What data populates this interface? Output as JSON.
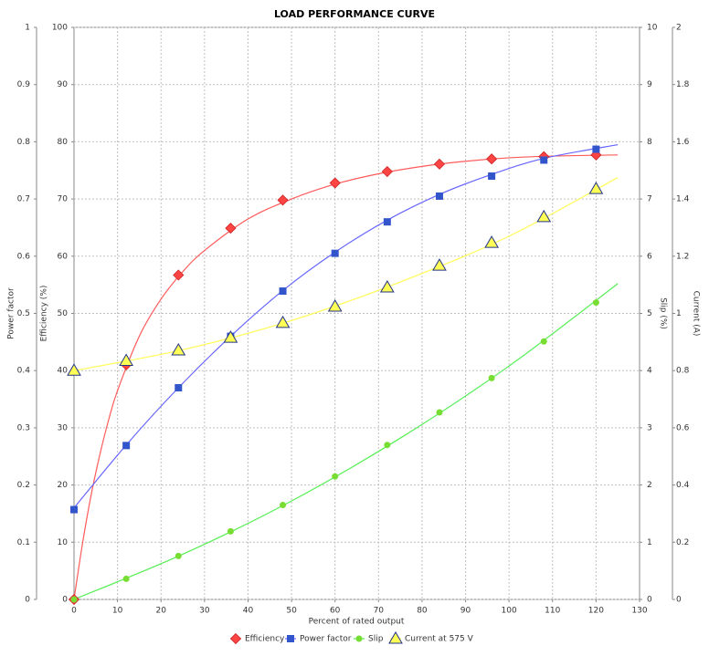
{
  "chart_data": {
    "type": "scatter",
    "title": "LOAD PERFORMANCE CURVE",
    "x_label": "Percent of rated output",
    "xlim": [
      0,
      130
    ],
    "xticks": [
      0,
      10,
      20,
      30,
      40,
      50,
      60,
      70,
      80,
      90,
      100,
      110,
      120,
      130
    ],
    "grid": true,
    "axes": [
      {
        "label": "Power factor",
        "side": "left",
        "ylim": [
          0,
          1
        ],
        "yticks": [
          0,
          0.1,
          0.2,
          0.3,
          0.4,
          0.5,
          0.6,
          0.7,
          0.8,
          0.9,
          1
        ]
      },
      {
        "label": "Efficiency (%)",
        "side": "left",
        "ylim": [
          0,
          100
        ],
        "yticks": [
          0,
          10,
          20,
          30,
          40,
          50,
          60,
          70,
          80,
          90,
          100
        ]
      },
      {
        "label": "Slip (%)",
        "side": "right",
        "ylim": [
          0,
          10
        ],
        "yticks": [
          0,
          1,
          2,
          3,
          4,
          5,
          6,
          7,
          8,
          9,
          10
        ]
      },
      {
        "label": "Current (A)",
        "side": "right",
        "ylim": [
          0,
          2
        ],
        "yticks": [
          0,
          0.2,
          0.4,
          0.6,
          0.8,
          1,
          1.2,
          1.4,
          1.6,
          1.8,
          2
        ]
      }
    ],
    "series": [
      {
        "name": "Efficiency",
        "axis": 1,
        "marker": "diamond",
        "color": "#ff4444",
        "line_color": "#ff5a5a",
        "x": [
          0,
          12,
          24,
          36,
          48,
          60,
          72,
          84,
          96,
          108,
          120
        ],
        "values": [
          0,
          41,
          56.7,
          64.9,
          69.8,
          72.8,
          74.8,
          76.1,
          77,
          77.4,
          77.7
        ],
        "fit": {
          "x": [
            0,
            2,
            4,
            6,
            8,
            10,
            15,
            20,
            25,
            30,
            40,
            50,
            60,
            70,
            80,
            90,
            100,
            110,
            125
          ],
          "values": [
            0,
            10,
            18.5,
            25.5,
            31.5,
            36.5,
            46,
            52.5,
            57.3,
            61,
            66.5,
            70,
            72.6,
            74.4,
            75.7,
            76.6,
            77.2,
            77.5,
            77.7
          ]
        }
      },
      {
        "name": "Power factor",
        "axis": 0,
        "marker": "square",
        "color": "#3355cc",
        "line_color": "#6666ff",
        "x": [
          0,
          12,
          24,
          36,
          48,
          60,
          72,
          84,
          96,
          108,
          120
        ],
        "values": [
          0.157,
          0.269,
          0.37,
          0.46,
          0.539,
          0.605,
          0.66,
          0.705,
          0.74,
          0.768,
          0.787
        ],
        "fit": {
          "x": [
            0,
            12,
            24,
            36,
            48,
            60,
            72,
            84,
            96,
            108,
            125
          ],
          "values": [
            0.16,
            0.27,
            0.37,
            0.46,
            0.54,
            0.607,
            0.663,
            0.708,
            0.743,
            0.771,
            0.795
          ]
        }
      },
      {
        "name": "Slip",
        "axis": 2,
        "marker": "circle",
        "color": "#77dd33",
        "line_color": "#55ee55",
        "x": [
          0,
          12,
          24,
          36,
          48,
          60,
          72,
          84,
          96,
          108,
          120
        ],
        "values": [
          0,
          0.36,
          0.76,
          1.19,
          1.65,
          2.15,
          2.7,
          3.27,
          3.87,
          4.51,
          5.19
        ],
        "fit": {
          "x": [
            0,
            25,
            50,
            75,
            100,
            125
          ],
          "values": [
            0,
            0.79,
            1.72,
            2.82,
            4.08,
            5.52
          ]
        }
      },
      {
        "name": "Current at 575 V",
        "axis": 3,
        "marker": "triangle",
        "color": "#ffff55",
        "line_color": "#ffff55",
        "x": [
          0,
          12,
          24,
          36,
          48,
          60,
          72,
          84,
          96,
          108,
          120
        ],
        "values": [
          0.8,
          0.834,
          0.871,
          0.915,
          0.967,
          1.024,
          1.091,
          1.167,
          1.247,
          1.337,
          1.435
        ],
        "fit": {
          "x": [
            0,
            25,
            50,
            75,
            100,
            125
          ],
          "values": [
            0.8,
            0.873,
            0.975,
            1.11,
            1.27,
            1.475
          ]
        }
      }
    ]
  }
}
